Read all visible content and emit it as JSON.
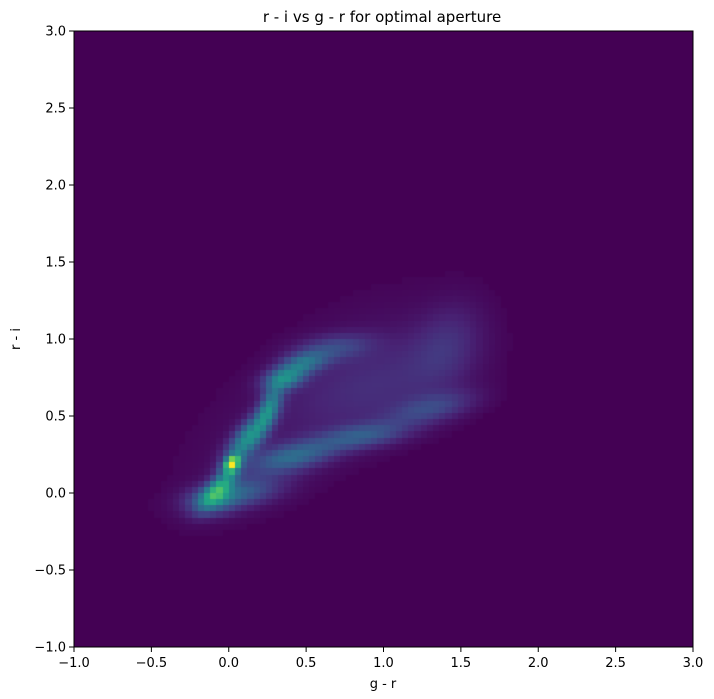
{
  "chart_data": {
    "type": "heatmap",
    "title": "r - i vs g - r for optimal aperture",
    "xlabel": "g - r",
    "ylabel": "r - i",
    "xlim": [
      -1.0,
      3.0
    ],
    "ylim": [
      -1.0,
      3.0
    ],
    "x_ticks": [
      "−1.0",
      "−0.5",
      "0.0",
      "0.5",
      "1.0",
      "1.5",
      "2.0",
      "2.5",
      "3.0"
    ],
    "y_ticks": [
      "−1.0",
      "−0.5",
      "0.0",
      "0.5",
      "1.0",
      "1.5",
      "2.0",
      "2.5",
      "3.0"
    ],
    "x_tick_values": [
      -1.0,
      -0.5,
      0.0,
      0.5,
      1.0,
      1.5,
      2.0,
      2.5,
      3.0
    ],
    "y_tick_values": [
      -1.0,
      -0.5,
      0.0,
      0.5,
      1.0,
      1.5,
      2.0,
      2.5,
      3.0
    ],
    "colormap": "viridis",
    "background_color": "#440154",
    "bins": [
      100,
      100
    ],
    "density_components": [
      {
        "x": 0.02,
        "y": 0.19,
        "sx": 0.035,
        "sy": 0.035,
        "rho": 0.3,
        "w": 1.0
      },
      {
        "x": -0.05,
        "y": 0.05,
        "sx": 0.08,
        "sy": 0.09,
        "rho": 0.75,
        "w": 0.55
      },
      {
        "x": 0.12,
        "y": 0.35,
        "sx": 0.09,
        "sy": 0.1,
        "rho": 0.7,
        "w": 0.55
      },
      {
        "x": 0.26,
        "y": 0.55,
        "sx": 0.06,
        "sy": 0.1,
        "rho": 0.6,
        "w": 0.5
      },
      {
        "x": 0.36,
        "y": 0.74,
        "sx": 0.09,
        "sy": 0.05,
        "rho": 0.3,
        "w": 0.48
      },
      {
        "x": 0.48,
        "y": 0.84,
        "sx": 0.1,
        "sy": 0.05,
        "rho": 0.4,
        "w": 0.38
      },
      {
        "x": 0.68,
        "y": 0.94,
        "sx": 0.16,
        "sy": 0.06,
        "rho": 0.3,
        "w": 0.2
      },
      {
        "x": 0.05,
        "y": 0.0,
        "sx": 0.18,
        "sy": 0.07,
        "rho": 0.4,
        "w": 0.32
      },
      {
        "x": 0.4,
        "y": 0.23,
        "sx": 0.18,
        "sy": 0.07,
        "rho": 0.5,
        "w": 0.36
      },
      {
        "x": 0.85,
        "y": 0.37,
        "sx": 0.2,
        "sy": 0.06,
        "rho": 0.5,
        "w": 0.28
      },
      {
        "x": 1.3,
        "y": 0.55,
        "sx": 0.18,
        "sy": 0.07,
        "rho": 0.5,
        "w": 0.2
      },
      {
        "x": 1.0,
        "y": 0.7,
        "sx": 0.35,
        "sy": 0.22,
        "rho": 0.4,
        "w": 0.1
      },
      {
        "x": 1.4,
        "y": 0.95,
        "sx": 0.15,
        "sy": 0.18,
        "rho": 0.3,
        "w": 0.11
      },
      {
        "x": -0.1,
        "y": -0.05,
        "sx": 0.1,
        "sy": 0.06,
        "rho": 0.2,
        "w": 0.3
      },
      {
        "x": 0.5,
        "y": 0.55,
        "sx": 0.5,
        "sy": 0.45,
        "rho": 0.7,
        "w": 0.04
      }
    ]
  }
}
